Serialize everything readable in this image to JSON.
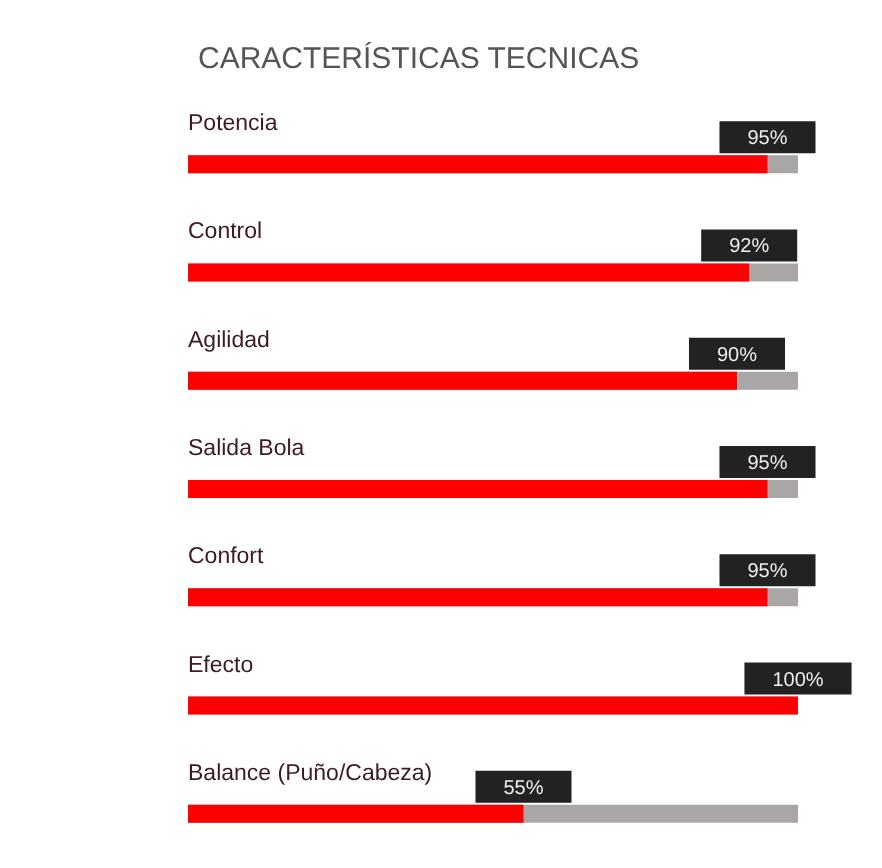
{
  "chart_data": {
    "type": "bar",
    "orientation": "horizontal",
    "title": "CARACTERÍSTICAS TECNICAS",
    "categories": [
      "Potencia",
      "Control",
      "Agilidad",
      "Salida Bola",
      "Confort",
      "Efecto",
      "Balance (Puño/Cabeza)"
    ],
    "values": [
      95,
      92,
      90,
      95,
      95,
      100,
      55
    ],
    "color": "#ff0000",
    "value_labels": [
      "95%",
      "92%",
      "90%",
      "95%",
      "95%",
      "100%",
      "55%"
    ],
    "tick_labels": "y"
  }
}
